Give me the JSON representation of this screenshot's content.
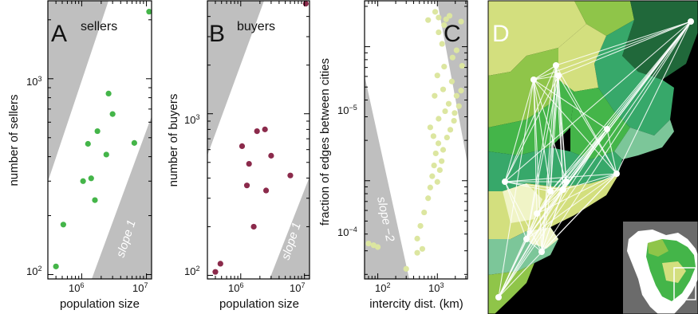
{
  "chart_data": [
    {
      "type": "scatter",
      "panel_letter": "A",
      "panel_title": "sellers",
      "xlabel": "population size",
      "ylabel": "number of sellers",
      "xscale": "log",
      "yscale": "log",
      "xlim": [
        300000,
        12000000
      ],
      "ylim": [
        95,
        2500
      ],
      "x_ticks": [
        {
          "value": 1000000,
          "label": "10^6"
        },
        {
          "value": 10000000,
          "label": "10^7"
        }
      ],
      "y_ticks": [
        {
          "value": 100,
          "label": "10^2"
        },
        {
          "value": 1000,
          "label": "10^3"
        }
      ],
      "slope_label": "slope 1",
      "point_color": "#44b549",
      "points": [
        {
          "x": 400000,
          "y": 110
        },
        {
          "x": 520000,
          "y": 180
        },
        {
          "x": 1050000,
          "y": 300
        },
        {
          "x": 1250000,
          "y": 465
        },
        {
          "x": 1400000,
          "y": 310
        },
        {
          "x": 1600000,
          "y": 240
        },
        {
          "x": 1750000,
          "y": 540
        },
        {
          "x": 2400000,
          "y": 410
        },
        {
          "x": 2600000,
          "y": 840
        },
        {
          "x": 3000000,
          "y": 660
        },
        {
          "x": 6500000,
          "y": 470
        },
        {
          "x": 11000000,
          "y": 2200
        }
      ]
    },
    {
      "type": "scatter",
      "panel_letter": "B",
      "panel_title": "buyers",
      "xlabel": "population size",
      "ylabel": "number of buyers",
      "xscale": "log",
      "yscale": "log",
      "xlim": [
        300000,
        12000000
      ],
      "ylim": [
        95,
        5000
      ],
      "x_ticks": [
        {
          "value": 1000000,
          "label": "10^6"
        },
        {
          "value": 10000000,
          "label": "10^7"
        }
      ],
      "y_ticks": [
        {
          "value": 100,
          "label": "10^2"
        },
        {
          "value": 1000,
          "label": "10^3"
        }
      ],
      "slope_label": "slope 1",
      "point_color": "#8b2a4b",
      "points": [
        {
          "x": 400000,
          "y": 105
        },
        {
          "x": 480000,
          "y": 118
        },
        {
          "x": 1050000,
          "y": 630
        },
        {
          "x": 1350000,
          "y": 490
        },
        {
          "x": 1250000,
          "y": 360
        },
        {
          "x": 1600000,
          "y": 200
        },
        {
          "x": 1800000,
          "y": 780
        },
        {
          "x": 2400000,
          "y": 800
        },
        {
          "x": 2500000,
          "y": 335
        },
        {
          "x": 3000000,
          "y": 550
        },
        {
          "x": 6000000,
          "y": 415
        },
        {
          "x": 10500000,
          "y": 4800
        }
      ]
    },
    {
      "type": "scatter",
      "panel_letter": "C",
      "xlabel": "intercity dist. (km)",
      "ylabel": "fraction of edges between cities",
      "xscale": "log",
      "yscale": "log",
      "xlim": [
        60,
        3200
      ],
      "ylim": [
        1.85e-06,
        0.00022
      ],
      "x_ticks": [
        {
          "value": 100,
          "label": "10^2"
        },
        {
          "value": 1000,
          "label": "10^3"
        }
      ],
      "y_ticks": [
        {
          "value": 1e-05,
          "label": "10^-5"
        },
        {
          "value": 0.0001,
          "label": "10^-4"
        }
      ],
      "slope_label": "slope −2",
      "point_color": "#dce6a0",
      "points": [
        {
          "x": 70,
          "y": 3.4e-06
        },
        {
          "x": 85,
          "y": 3.3e-06
        },
        {
          "x": 100,
          "y": 3.2e-06
        },
        {
          "x": 300,
          "y": 2.2e-06
        },
        {
          "x": 460,
          "y": 2.9e-06
        },
        {
          "x": 560,
          "y": 3.1e-06
        },
        {
          "x": 460,
          "y": 3.7e-06
        },
        {
          "x": 520,
          "y": 4.6e-06
        },
        {
          "x": 600,
          "y": 5.8e-06
        },
        {
          "x": 700,
          "y": 7.4e-06
        },
        {
          "x": 760,
          "y": 8.9e-06
        },
        {
          "x": 820,
          "y": 1.08e-05
        },
        {
          "x": 880,
          "y": 1.3e-05
        },
        {
          "x": 1000,
          "y": 9.8e-06
        },
        {
          "x": 1100,
          "y": 1.2e-05
        },
        {
          "x": 1180,
          "y": 1.4e-05
        },
        {
          "x": 940,
          "y": 1.6e-05
        },
        {
          "x": 1040,
          "y": 1.9e-05
        },
        {
          "x": 860,
          "y": 2.15e-05
        },
        {
          "x": 1250,
          "y": 1.7e-05
        },
        {
          "x": 1450,
          "y": 2.1e-05
        },
        {
          "x": 1650,
          "y": 2.4e-05
        },
        {
          "x": 760,
          "y": 2.5e-05
        },
        {
          "x": 1900,
          "y": 2.8e-05
        },
        {
          "x": 1050,
          "y": 2.9e-05
        },
        {
          "x": 1350,
          "y": 3.3e-05
        },
        {
          "x": 1550,
          "y": 3.75e-05
        },
        {
          "x": 900,
          "y": 4.3e-05
        },
        {
          "x": 2100,
          "y": 4.3e-05
        },
        {
          "x": 2500,
          "y": 4.7e-05
        },
        {
          "x": 1250,
          "y": 4.8e-05
        },
        {
          "x": 1750,
          "y": 5.5e-05
        },
        {
          "x": 1000,
          "y": 6.1e-05
        },
        {
          "x": 1300,
          "y": 7.1e-05
        },
        {
          "x": 2600,
          "y": 7.2e-05
        },
        {
          "x": 1800,
          "y": 8.3e-05
        },
        {
          "x": 2100,
          "y": 9.4e-05
        },
        {
          "x": 1200,
          "y": 0.000105
        },
        {
          "x": 1050,
          "y": 0.000128
        },
        {
          "x": 1300,
          "y": 0.000145
        },
        {
          "x": 1400,
          "y": 0.00016
        },
        {
          "x": 700,
          "y": 0.000158
        },
        {
          "x": 1050,
          "y": 0.000165
        },
        {
          "x": 1600,
          "y": 0.00017
        },
        {
          "x": 920,
          "y": 0.000182
        },
        {
          "x": 2500,
          "y": 0.000154
        },
        {
          "x": 1950,
          "y": 3.2e-05
        },
        {
          "x": 2300,
          "y": 3.6e-05
        }
      ]
    }
  ],
  "map_panel": {
    "panel_letter": "D",
    "land_colors": [
      "#8fc549",
      "#44b549",
      "#d3df7e",
      "#20683a",
      "#37a86a",
      "#7cc699",
      "#f0f4c6",
      "#b9d96f"
    ],
    "background_color": "#000000",
    "node_color": "#ffffff",
    "edge_color": "#ffffff",
    "inset_background": "#6b6b6b"
  }
}
